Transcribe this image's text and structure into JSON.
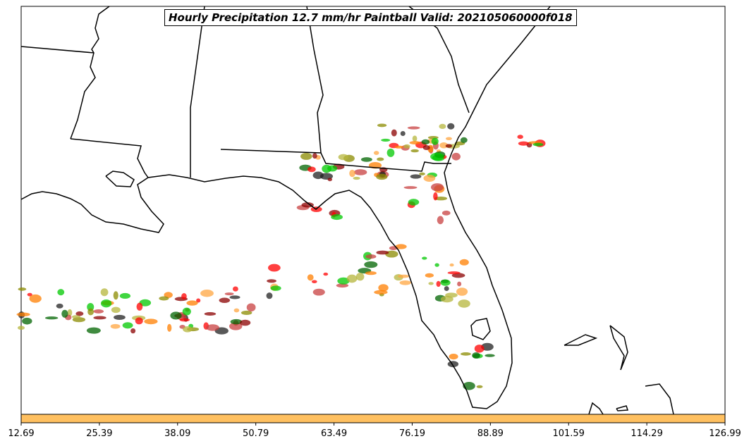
{
  "title": "Hourly Precipitation 12.7 mm/hr Paintball Valid: 202105060000f018",
  "colorbar": {
    "color": "#ffc060",
    "ticks": [
      "12.69",
      "25.39",
      "38.09",
      "50.79",
      "63.49",
      "76.19",
      "88.89",
      "101.59",
      "114.29",
      "126.99"
    ]
  },
  "member_colors": [
    "#ff0000",
    "#ff7f00",
    "#8b8b00",
    "#8b0000",
    "#222222",
    "#00c800",
    "#ffa640",
    "#b5b53c",
    "#006400",
    "#c84040"
  ]
}
